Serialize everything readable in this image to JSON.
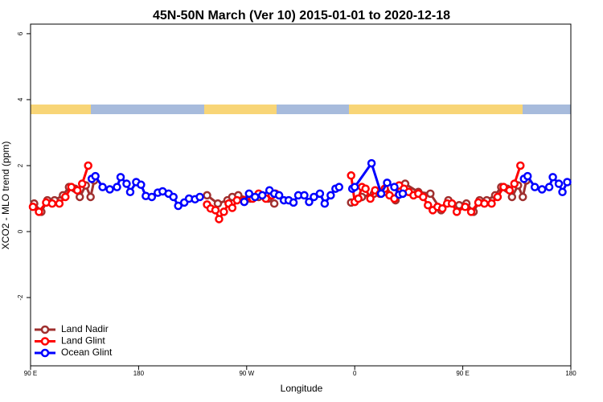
{
  "chart_data": {
    "type": "line",
    "title": "45N-50N March (Ver 10)   2015-01-01 to 2020-12-18",
    "x_label": "Longitude",
    "y_label": "XCO2 - MLO trend (ppm)",
    "xlim": [
      90,
      540
    ],
    "ylim": [
      -4.07,
      6.29
    ],
    "xticks": [
      {
        "value": 90,
        "label": "90 E"
      },
      180,
      {
        "value": 270,
        "label": "90 W"
      },
      {
        "value": 360,
        "label": "0"
      },
      {
        "value": 450,
        "label": "90 E"
      },
      {
        "value": 540,
        "label": "180"
      }
    ],
    "yticks": [
      -2,
      0,
      2,
      4,
      6
    ],
    "legend": "bottomleft",
    "series": [
      {
        "name": "Land Nadir",
        "color": "#a0302f",
        "x": [
          93,
          99,
          104,
          110,
          117,
          122,
          127,
          131,
          136,
          140,
          143,
          null,
          237,
          246,
          254,
          258,
          263,
          273,
          280,
          288,
          293,
          null,
          357,
          366,
          376,
          386,
          394,
          402,
          413,
          423,
          432,
          438,
          447,
          453,
          459,
          464,
          470,
          477,
          482,
          487,
          491,
          496,
          500,
          503
        ],
        "values": [
          0.85,
          0.6,
          0.95,
          0.95,
          1.1,
          1.35,
          1.3,
          1.05,
          1.4,
          1.05,
          1.55,
          null,
          1.1,
          0.85,
          0.95,
          1.05,
          1.1,
          1.0,
          1.05,
          1.0,
          0.85,
          null,
          0.88,
          1.05,
          1.15,
          1.2,
          0.95,
          1.45,
          1.2,
          1.15,
          0.65,
          0.95,
          0.8,
          0.85,
          0.6,
          0.95,
          0.95,
          1.1,
          1.35,
          1.3,
          1.05,
          1.4,
          1.05,
          1.55
        ]
      },
      {
        "name": "Land Glint",
        "color": "#ff0000",
        "x": [
          92,
          97,
          103,
          108,
          114,
          119,
          124,
          129,
          133,
          138,
          null,
          237,
          240,
          244,
          247,
          251,
          255,
          258,
          262,
          268,
          275,
          280,
          286,
          291,
          294,
          null,
          357,
          360,
          363,
          366,
          369,
          373,
          377,
          381,
          385,
          389,
          393,
          397,
          401,
          405,
          409,
          413,
          417,
          421,
          425,
          429,
          433,
          437,
          441,
          445,
          452,
          457,
          463,
          468,
          474,
          479,
          484,
          489,
          493,
          498
        ],
        "values": [
          0.75,
          0.6,
          0.88,
          0.85,
          0.85,
          1.05,
          1.35,
          1.25,
          1.45,
          2.0,
          null,
          0.82,
          0.7,
          0.65,
          0.38,
          0.6,
          0.85,
          0.72,
          0.95,
          0.95,
          1.0,
          1.15,
          1.0,
          1.1,
          1.15,
          null,
          1.7,
          0.9,
          1.0,
          1.35,
          1.3,
          1.0,
          1.25,
          1.15,
          1.3,
          1.1,
          1.0,
          1.4,
          1.3,
          1.2,
          1.1,
          1.15,
          1.05,
          0.8,
          0.65,
          0.75,
          0.7,
          0.85,
          0.85,
          0.6,
          0.75,
          0.6,
          0.88,
          0.85,
          0.85,
          1.05,
          1.35,
          1.25,
          1.45,
          2.0
        ]
      },
      {
        "name": "Ocean Glint",
        "color": "#0000ff",
        "x": [
          141,
          144,
          150,
          156,
          162,
          165,
          170,
          173,
          178,
          182,
          186,
          191,
          196,
          200,
          205,
          209,
          213,
          218,
          222,
          227,
          231,
          null,
          268,
          272,
          277,
          283,
          289,
          293,
          297,
          301,
          305,
          309,
          313,
          318,
          322,
          326,
          331,
          335,
          340,
          344,
          347,
          null,
          358,
          360,
          374,
          382,
          387,
          393,
          397,
          400,
          null,
          501,
          504,
          510,
          516,
          522,
          525,
          530,
          533,
          537
        ],
        "values": [
          1.6,
          1.68,
          1.35,
          1.28,
          1.35,
          1.65,
          1.45,
          1.2,
          1.5,
          1.42,
          1.08,
          1.05,
          1.18,
          1.22,
          1.15,
          1.05,
          0.78,
          0.88,
          1.0,
          0.98,
          1.05,
          null,
          0.9,
          1.15,
          1.05,
          1.1,
          1.25,
          1.15,
          1.1,
          0.95,
          0.95,
          0.88,
          1.1,
          1.1,
          0.9,
          1.05,
          1.15,
          0.85,
          1.1,
          1.3,
          1.35,
          null,
          1.3,
          1.35,
          2.07,
          1.15,
          1.48,
          1.35,
          1.12,
          1.15,
          null,
          1.6,
          1.68,
          1.35,
          1.28,
          1.35,
          1.65,
          1.45,
          1.2,
          1.5
        ]
      }
    ]
  }
}
